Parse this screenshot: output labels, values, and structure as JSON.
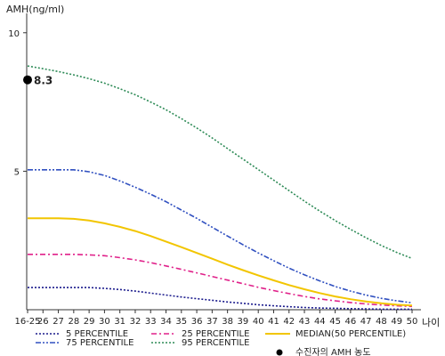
{
  "chart_data": {
    "type": "line",
    "ylabel": "AMH(ng/ml)",
    "xlabel": "나이",
    "x_ticks": [
      "16-25",
      "26",
      "27",
      "28",
      "29",
      "30",
      "31",
      "32",
      "33",
      "34",
      "35",
      "36",
      "37",
      "38",
      "39",
      "40",
      "41",
      "42",
      "43",
      "44",
      "45",
      "46",
      "47",
      "48",
      "49",
      "50"
    ],
    "y_ticks": [
      "10",
      "5"
    ],
    "ylim": [
      0,
      10.7
    ],
    "grid": false,
    "legend_position": "bottom",
    "series": [
      {
        "name": "5 PERCENTILE",
        "color": "#1a1a8c",
        "style": "dotted",
        "values": [
          0.8,
          0.8,
          0.8,
          0.8,
          0.8,
          0.77,
          0.73,
          0.67,
          0.6,
          0.53,
          0.46,
          0.4,
          0.34,
          0.28,
          0.23,
          0.18,
          0.14,
          0.11,
          0.08,
          0.06,
          0.05,
          0.04,
          0.03,
          0.02,
          0.02,
          0.02
        ]
      },
      {
        "name": "25 PERCENTILE",
        "color": "#e0218a",
        "style": "dashdot",
        "values": [
          2.0,
          2.0,
          2.0,
          2.0,
          1.98,
          1.95,
          1.88,
          1.8,
          1.7,
          1.58,
          1.46,
          1.33,
          1.2,
          1.07,
          0.94,
          0.81,
          0.69,
          0.58,
          0.48,
          0.39,
          0.32,
          0.26,
          0.21,
          0.17,
          0.14,
          0.12
        ]
      },
      {
        "name": "MEDIAN(50 PERCENTILE)",
        "color": "#f2c500",
        "style": "solid",
        "values": [
          3.3,
          3.3,
          3.3,
          3.28,
          3.22,
          3.12,
          2.99,
          2.84,
          2.66,
          2.46,
          2.26,
          2.05,
          1.84,
          1.63,
          1.43,
          1.24,
          1.06,
          0.89,
          0.74,
          0.6,
          0.48,
          0.38,
          0.3,
          0.23,
          0.18,
          0.15
        ]
      },
      {
        "name": "75 PERCENTILE",
        "color": "#3050c0",
        "style": "dashdotdot",
        "values": [
          5.05,
          5.05,
          5.05,
          5.05,
          4.98,
          4.85,
          4.65,
          4.42,
          4.17,
          3.9,
          3.6,
          3.3,
          2.98,
          2.66,
          2.35,
          2.05,
          1.77,
          1.5,
          1.26,
          1.04,
          0.84,
          0.67,
          0.53,
          0.41,
          0.32,
          0.25
        ]
      },
      {
        "name": "95 PERCENTILE",
        "color": "#2e8b57",
        "style": "dotted",
        "values": [
          8.8,
          8.7,
          8.6,
          8.48,
          8.34,
          8.18,
          7.98,
          7.76,
          7.5,
          7.22,
          6.9,
          6.56,
          6.2,
          5.82,
          5.44,
          5.06,
          4.68,
          4.3,
          3.92,
          3.56,
          3.22,
          2.9,
          2.6,
          2.32,
          2.07,
          1.85
        ]
      }
    ],
    "marker": {
      "name": "수진자의 AMH 농도",
      "x": "16-25",
      "y": 8.3,
      "label": "8.3",
      "color": "#000000"
    }
  }
}
